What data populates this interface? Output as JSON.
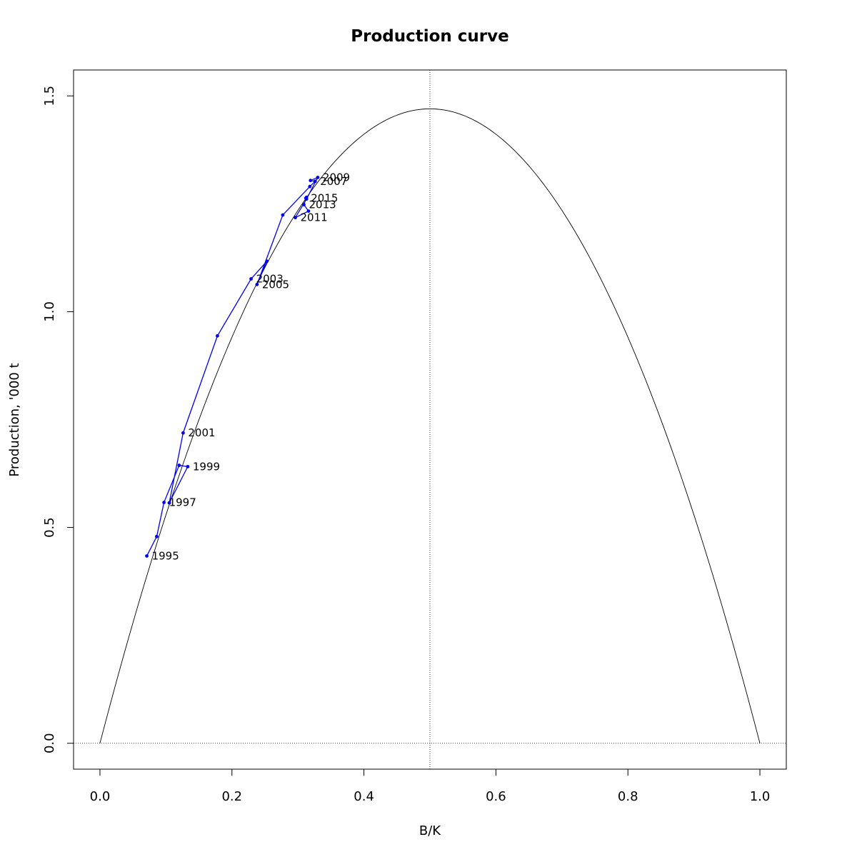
{
  "chart_data": {
    "type": "line",
    "title": "Production curve",
    "xlabel": "B/K",
    "ylabel": "Production, '000 t",
    "xlim": [
      -0.04,
      1.04
    ],
    "ylim": [
      -0.06,
      1.56
    ],
    "x_ticks": [
      0.0,
      0.2,
      0.4,
      0.6,
      0.8,
      1.0
    ],
    "x_tick_labels": [
      "0.0",
      "0.2",
      "0.4",
      "0.6",
      "0.8",
      "1.0"
    ],
    "y_ticks": [
      0.0,
      0.5,
      1.0,
      1.5
    ],
    "y_tick_labels": [
      "0.0",
      "0.5",
      "1.0",
      "1.5"
    ],
    "grid": false,
    "legend": "none",
    "reference_lines": {
      "vertical_x": 0.5,
      "horizontal_y": 0.0,
      "style": "dotted"
    },
    "curve": {
      "form": "parabola",
      "roots": [
        0.0,
        1.0
      ],
      "peak_x": 0.5,
      "peak_y": 1.47,
      "color": "#000000"
    },
    "series": [
      {
        "color": "#0000ee",
        "points": [
          {
            "x": 0.071,
            "y": 0.434,
            "label": "1995"
          },
          {
            "x": 0.086,
            "y": 0.479
          },
          {
            "x": 0.097,
            "y": 0.558,
            "label": "1997"
          },
          {
            "x": 0.12,
            "y": 0.644
          },
          {
            "x": 0.133,
            "y": 0.641,
            "label": "1999"
          },
          {
            "x": 0.105,
            "y": 0.557
          },
          {
            "x": 0.126,
            "y": 0.719,
            "label": "2001"
          },
          {
            "x": 0.178,
            "y": 0.944
          },
          {
            "x": 0.229,
            "y": 1.076,
            "label": "2003"
          },
          {
            "x": 0.253,
            "y": 1.117
          },
          {
            "x": 0.238,
            "y": 1.063,
            "label": "2005"
          },
          {
            "x": 0.277,
            "y": 1.224
          },
          {
            "x": 0.318,
            "y": 1.29
          },
          {
            "x": 0.326,
            "y": 1.302,
            "label": "2007"
          },
          {
            "x": 0.319,
            "y": 1.304
          },
          {
            "x": 0.33,
            "y": 1.311,
            "label": "2009"
          },
          {
            "x": 0.313,
            "y": 1.261
          },
          {
            "x": 0.296,
            "y": 1.218,
            "label": "2011"
          },
          {
            "x": 0.316,
            "y": 1.233
          },
          {
            "x": 0.309,
            "y": 1.248,
            "label": "2013"
          },
          {
            "x": 0.313,
            "y": 1.265
          },
          {
            "x": 0.312,
            "y": 1.263,
            "label": "2015"
          }
        ]
      }
    ]
  }
}
